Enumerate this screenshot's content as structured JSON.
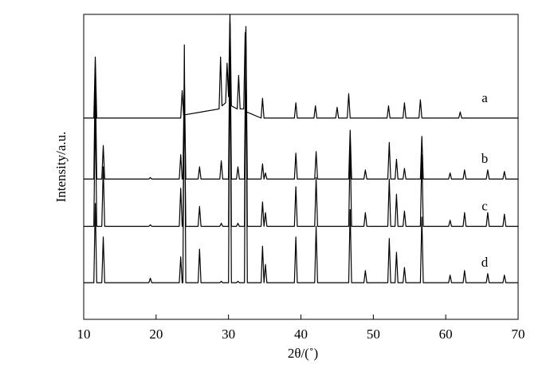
{
  "chart_data": {
    "type": "line",
    "xlabel": "2θ/(˚)",
    "ylabel": "Intensity/a.u.",
    "xlim": [
      10,
      70
    ],
    "xticks": [
      10,
      20,
      30,
      40,
      50,
      60,
      70
    ],
    "ylim": [
      0,
      100
    ],
    "series": [
      {
        "name": "a",
        "color": "#000000",
        "x": [
          10,
          11.4,
          11.6,
          11.8,
          23.4,
          23.6,
          23.8,
          28.7,
          28.9,
          29.1,
          29.6,
          29.8,
          30.0,
          30.2,
          30.4,
          31.2,
          31.4,
          31.6,
          32.1,
          32.3,
          32.5,
          34.5,
          34.7,
          34.9,
          39.1,
          39.3,
          39.5,
          41.8,
          42.0,
          42.2,
          44.8,
          45.0,
          45.2,
          46.4,
          46.6,
          46.8,
          51.9,
          52.1,
          52.3,
          54.1,
          54.3,
          54.5,
          56.3,
          56.5,
          56.7,
          61.8,
          62.0,
          62.2,
          70
        ],
        "values": [
          66,
          66,
          86,
          66,
          66,
          75,
          67,
          69,
          86,
          70,
          71,
          84,
          73,
          100,
          70,
          69,
          80,
          69,
          69,
          94,
          68,
          66,
          72.5,
          66,
          66,
          71,
          66,
          66,
          70,
          66,
          66,
          69.5,
          66,
          66,
          74,
          66,
          66,
          70,
          66,
          66,
          71,
          66,
          66,
          72,
          66,
          66,
          68,
          66,
          66
        ]
      },
      {
        "name": "b",
        "color": "#000000",
        "x": [
          10,
          11.4,
          11.6,
          11.8,
          12.5,
          12.7,
          12.9,
          19.0,
          19.2,
          19.4,
          23.2,
          23.4,
          23.6,
          23.7,
          23.9,
          24.1,
          25.8,
          26.0,
          26.2,
          28.8,
          29.0,
          29.2,
          30.0,
          30.2,
          30.4,
          31.1,
          31.3,
          31.5,
          32.2,
          32.4,
          32.6,
          34.5,
          34.7,
          34.9,
          35.1,
          35.3,
          39.1,
          39.3,
          39.5,
          41.9,
          42.1,
          42.3,
          46.6,
          46.8,
          47.0,
          48.7,
          48.9,
          49.1,
          52.0,
          52.2,
          52.4,
          53.0,
          53.2,
          53.4,
          54.1,
          54.3,
          54.5,
          56.5,
          56.7,
          56.9,
          60.4,
          60.6,
          60.8,
          62.4,
          62.6,
          62.8,
          65.6,
          65.8,
          66.0,
          67.9,
          68.1,
          68.3,
          70
        ],
        "values": [
          46,
          46,
          83,
          46,
          46,
          57,
          46,
          46,
          46.5,
          46,
          46,
          54,
          46,
          46,
          80,
          46,
          46,
          50,
          46,
          46,
          52,
          46,
          46,
          97,
          46,
          46,
          50,
          46,
          46,
          95,
          46,
          46,
          51,
          46,
          48,
          46,
          46,
          54.5,
          46,
          46,
          55,
          46,
          46,
          62,
          46,
          46,
          49,
          46,
          46,
          58,
          46,
          46,
          52.5,
          46,
          46,
          49.5,
          46,
          46,
          60,
          46,
          46,
          48,
          46,
          46,
          49,
          46,
          46,
          49,
          46,
          46,
          48.5,
          46,
          46
        ]
      },
      {
        "name": "c",
        "color": "#000000",
        "x": [
          10,
          11.4,
          11.6,
          11.8,
          12.5,
          12.7,
          12.9,
          19.0,
          19.2,
          19.4,
          23.2,
          23.4,
          23.6,
          23.7,
          23.9,
          24.1,
          25.8,
          26.0,
          26.2,
          28.8,
          29.0,
          29.2,
          30.0,
          30.2,
          30.4,
          31.1,
          31.3,
          31.5,
          32.2,
          32.4,
          32.6,
          34.5,
          34.7,
          34.9,
          35.1,
          35.3,
          39.1,
          39.3,
          39.5,
          41.9,
          42.1,
          42.3,
          46.6,
          46.8,
          47.0,
          48.7,
          48.9,
          49.1,
          52.0,
          52.2,
          52.4,
          53.0,
          53.2,
          53.4,
          54.1,
          54.3,
          54.5,
          56.5,
          56.7,
          56.9,
          60.4,
          60.6,
          60.8,
          62.4,
          62.6,
          62.8,
          65.6,
          65.8,
          66.0,
          67.9,
          68.1,
          68.3,
          70
        ],
        "values": [
          30.5,
          30.5,
          70,
          30.5,
          30.5,
          50,
          30.5,
          30.5,
          31,
          30.5,
          30.5,
          43,
          30.5,
          30.5,
          75,
          30.5,
          30.5,
          37,
          30.5,
          30.5,
          31.5,
          30.5,
          30.5,
          95,
          30.5,
          30.5,
          31.5,
          30.5,
          30.5,
          90,
          30.5,
          30.5,
          38.5,
          30.5,
          35,
          30.5,
          30.5,
          43.5,
          30.5,
          30.5,
          46.5,
          30.5,
          30.5,
          57,
          30.5,
          30.5,
          35,
          30.5,
          30.5,
          46,
          30.5,
          30.5,
          41,
          30.5,
          30.5,
          35.5,
          30.5,
          30.5,
          54,
          30.5,
          30.5,
          32.5,
          30.5,
          30.5,
          35,
          30.5,
          30.5,
          35,
          30.5,
          30.5,
          34.5,
          30.5,
          30.5
        ]
      },
      {
        "name": "d",
        "color": "#000000",
        "x": [
          10,
          11.4,
          11.6,
          11.8,
          12.5,
          12.7,
          12.9,
          19.0,
          19.2,
          19.4,
          23.2,
          23.4,
          23.6,
          23.7,
          23.9,
          24.1,
          25.8,
          26.0,
          26.2,
          28.8,
          29.0,
          29.2,
          30.0,
          30.2,
          30.4,
          31.1,
          31.3,
          31.5,
          32.2,
          32.4,
          32.6,
          34.5,
          34.7,
          34.9,
          35.1,
          35.3,
          39.1,
          39.3,
          39.5,
          41.9,
          42.1,
          42.3,
          46.6,
          46.8,
          47.0,
          48.7,
          48.9,
          49.1,
          52.0,
          52.2,
          52.4,
          53.0,
          53.2,
          53.4,
          54.1,
          54.3,
          54.5,
          56.5,
          56.7,
          56.9,
          60.4,
          60.6,
          60.8,
          62.4,
          62.6,
          62.8,
          65.6,
          65.8,
          66.0,
          67.9,
          68.1,
          68.3,
          70
        ],
        "values": [
          12,
          12,
          38,
          12,
          12,
          27,
          12,
          12,
          13.5,
          12,
          12,
          20.5,
          12,
          12,
          90,
          12,
          12,
          23,
          12,
          12,
          12.5,
          12,
          12,
          98,
          12,
          12,
          12.5,
          12,
          12,
          96,
          12,
          12,
          24,
          12,
          18,
          12,
          12,
          27,
          12,
          12,
          30.5,
          12,
          12,
          36,
          12,
          12,
          16,
          12,
          12,
          26.5,
          12,
          12,
          22,
          12,
          12,
          17,
          12,
          12,
          33.5,
          12,
          12,
          14.5,
          12,
          12,
          16,
          12,
          12,
          15,
          12,
          12,
          14.5,
          12,
          12
        ]
      }
    ]
  }
}
